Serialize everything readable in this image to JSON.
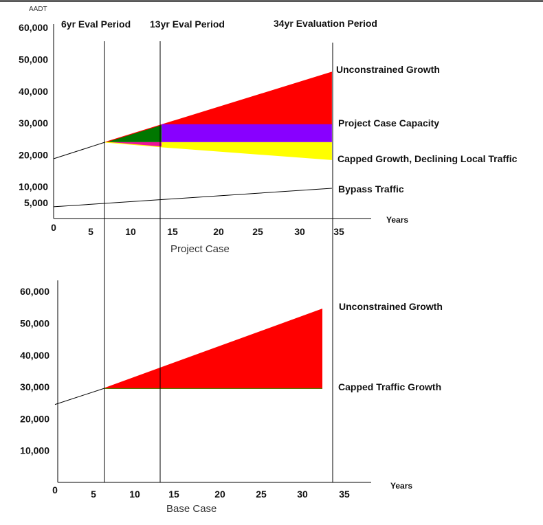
{
  "chart_data": [
    {
      "type": "area",
      "title": "Project Case",
      "ylabel": "AADT",
      "xlabel": "Years",
      "x_ticks": [
        0,
        5,
        10,
        15,
        20,
        25,
        30,
        35
      ],
      "y_ticks": [
        5000,
        10000,
        20000,
        30000,
        40000,
        50000,
        60000
      ],
      "y_tick_labels": [
        "5,000",
        "10,000",
        "20,000",
        "30,000",
        "40,000",
        "50,000",
        "60,000"
      ],
      "period_markers": [
        {
          "x": 6.3,
          "label": "6yr Eval Period"
        },
        {
          "x": 13.2,
          "label": "13yr Eval Period"
        },
        {
          "x": 34,
          "label": "34yr Evaluation Period"
        }
      ],
      "series": [
        {
          "name": "Unconstrained Growth",
          "x": [
            6.3,
            34
          ],
          "values": [
            24000,
            46000
          ],
          "color": "#ff0000"
        },
        {
          "name": "Project Case Capacity",
          "x": [
            13.2,
            34
          ],
          "values": [
            29500,
            29500
          ],
          "color": "#8800ff"
        },
        {
          "name": "Capped Growth, Declining Local Traffic",
          "x": [
            6.3,
            13.2,
            34
          ],
          "values": [
            24000,
            22500,
            18500
          ],
          "color": "#ffff00"
        },
        {
          "name": "Bypass Traffic",
          "x": [
            0,
            34
          ],
          "values": [
            3700,
            9500
          ],
          "color": "#000000"
        }
      ],
      "pre_period_line": {
        "x": [
          0,
          6.3
        ],
        "values": [
          18800,
          24000
        ]
      },
      "regions": [
        {
          "x": [
            6.3,
            13.2
          ],
          "top": [
            24000,
            29500
          ],
          "bottom": [
            24000,
            24000
          ],
          "color": "#007700"
        },
        {
          "x": [
            6.3,
            13.2
          ],
          "top": [
            24000,
            24000
          ],
          "bottom": [
            24000,
            22500
          ],
          "color": "#ee1199"
        },
        {
          "x": [
            13.2,
            34
          ],
          "top": [
            29500,
            46000
          ],
          "bottom": [
            29500,
            29500
          ],
          "color": "#ff0000"
        },
        {
          "x": [
            13.2,
            34
          ],
          "top": [
            29500,
            29500
          ],
          "bottom": [
            24000,
            24000
          ],
          "color": "#8800ff"
        },
        {
          "x": [
            13.2,
            34
          ],
          "top": [
            24000,
            24000
          ],
          "bottom": [
            22500,
            18500
          ],
          "color": "#ffff00"
        }
      ]
    },
    {
      "type": "area",
      "title": "Base Case",
      "ylabel": "",
      "xlabel": "Years",
      "x_ticks": [
        0,
        5,
        10,
        15,
        20,
        25,
        30,
        35
      ],
      "y_ticks": [
        10000,
        20000,
        30000,
        40000,
        50000,
        60000
      ],
      "y_tick_labels": [
        "10,000",
        "20,000",
        "30,000",
        "40,000",
        "50,000",
        "60,000"
      ],
      "series": [
        {
          "name": "Unconstrained Growth",
          "x": [
            6.2,
            34
          ],
          "values": [
            29500,
            54500
          ],
          "color": "#ff0000"
        },
        {
          "name": "Capped Traffic Growth",
          "x": [
            6.2,
            34
          ],
          "values": [
            29500,
            29500
          ],
          "color": "#557700"
        }
      ],
      "pre_period_line": {
        "x": [
          0,
          6.2
        ],
        "values": [
          24500,
          29500
        ]
      },
      "regions": [
        {
          "x": [
            6.2,
            34
          ],
          "top": [
            29500,
            54500
          ],
          "bottom": [
            29500,
            29500
          ],
          "color": "#ff0000"
        }
      ]
    }
  ]
}
